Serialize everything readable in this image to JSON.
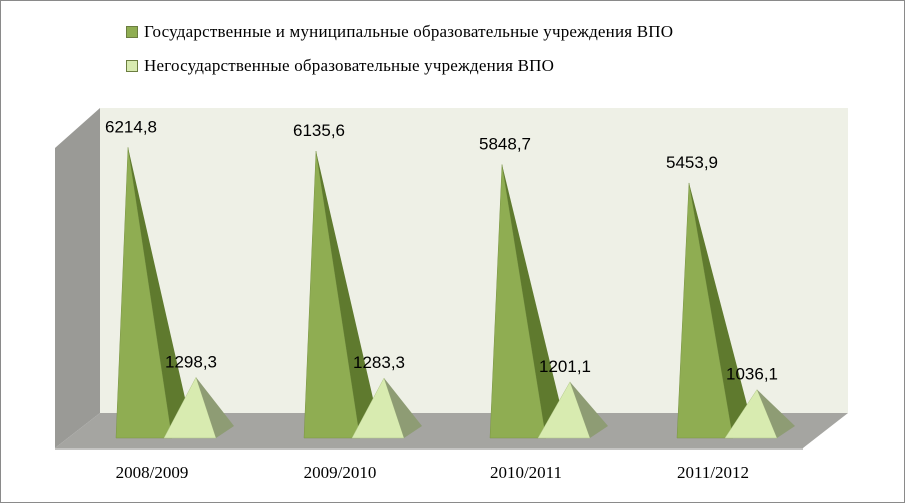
{
  "chart_data": {
    "type": "bar",
    "style": "3d-pyramid",
    "categories": [
      "2008/2009",
      "2009/2010",
      "2010/2011",
      "2011/2012"
    ],
    "series": [
      {
        "name": "Государственные и муниципальные образовательные учреждения ВПО",
        "values": [
          6214.8,
          6135.6,
          5848.7,
          5453.9
        ],
        "labels": [
          "6214,8",
          "6135,6",
          "5848,7",
          "5453,9"
        ],
        "color": "#8fad52",
        "color_dark": "#5f7a2e"
      },
      {
        "name": "Негосударственные образовательные учреждения ВПО",
        "values": [
          1298.3,
          1283.3,
          1201.1,
          1036.1
        ],
        "labels": [
          "1298,3",
          "1283,3",
          "1201,1",
          "1036,1"
        ],
        "color": "#d8ebb0",
        "color_dark": "#8e9c74"
      }
    ],
    "legend_position": "top",
    "grid": false
  }
}
